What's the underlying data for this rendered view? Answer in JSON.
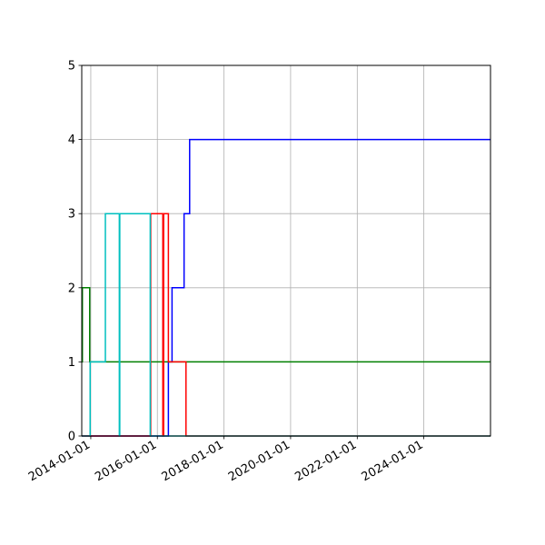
{
  "chart_data": {
    "type": "line",
    "title": "",
    "xlabel": "",
    "ylabel": "",
    "xlim": [
      "2013-09-24",
      "2026-01-01"
    ],
    "ylim": [
      0,
      5
    ],
    "grid": true,
    "drawstyle": "steps-post",
    "x_ticks": [
      "2014-01-01",
      "2016-01-01",
      "2018-01-01",
      "2020-01-01",
      "2022-01-01",
      "2024-01-01"
    ],
    "y_ticks": [
      0,
      1,
      2,
      3,
      4,
      5
    ],
    "series": [
      {
        "color": "#0000ff",
        "x": [
          "2013-09-24",
          "2016-05-01",
          "2016-06-10",
          "2016-10-20",
          "2016-12-20",
          "2026-01-01"
        ],
        "y": [
          0,
          1,
          2,
          3,
          4,
          4
        ]
      },
      {
        "color": "#008000",
        "x": [
          "2013-09-24",
          "2013-10-01",
          "2013-12-20",
          "2026-01-01"
        ],
        "y": [
          1,
          2,
          1,
          1
        ]
      },
      {
        "color": "#ff0000",
        "x": [
          "2013-09-24",
          "2015-10-20",
          "2016-03-01",
          "2016-03-10",
          "2016-05-01",
          "2016-11-10",
          "2026-01-01"
        ],
        "y": [
          0,
          3,
          0,
          3,
          1,
          0,
          0
        ]
      },
      {
        "color": "#00bfbf",
        "x": [
          "2013-09-24",
          "2013-12-25",
          "2014-06-10",
          "2014-11-10",
          "2014-11-15",
          "2015-10-15",
          "2015-10-20",
          "2026-01-01"
        ],
        "y": [
          0,
          1,
          3,
          0,
          3,
          0,
          0,
          0
        ]
      }
    ]
  }
}
